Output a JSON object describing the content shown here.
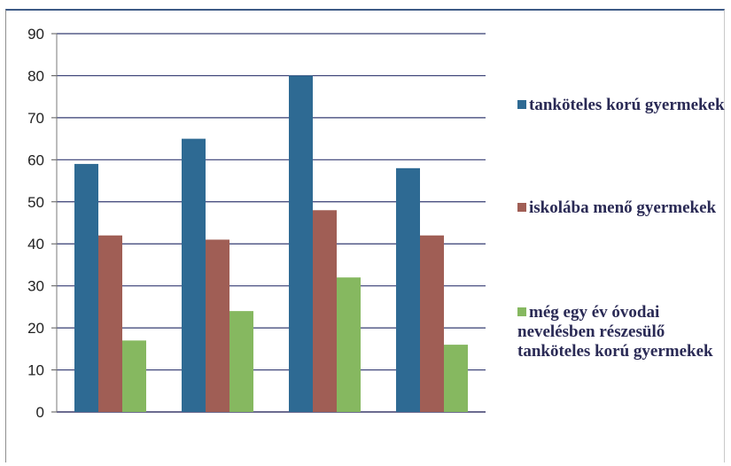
{
  "chart_data": {
    "type": "bar",
    "title": "",
    "xlabel": "",
    "ylabel": "",
    "categories": [
      "",
      "",
      "",
      ""
    ],
    "ylim": [
      0,
      90
    ],
    "yticks": [
      0,
      10,
      20,
      30,
      40,
      50,
      60,
      70,
      80,
      90
    ],
    "grid": true,
    "legend_position": "right",
    "series": [
      {
        "name": "tanköteles korú gyermekek",
        "color": "#2e6a93",
        "values": [
          59,
          65,
          80,
          58
        ]
      },
      {
        "name": "iskolába menő gyermekek",
        "color": "#a05e55",
        "values": [
          42,
          41,
          48,
          42
        ]
      },
      {
        "name": "még egy év óvodai nevelésben részesülő tanköteles korú gyermekek",
        "color": "#86b860",
        "values": [
          17,
          24,
          32,
          16
        ]
      }
    ]
  }
}
